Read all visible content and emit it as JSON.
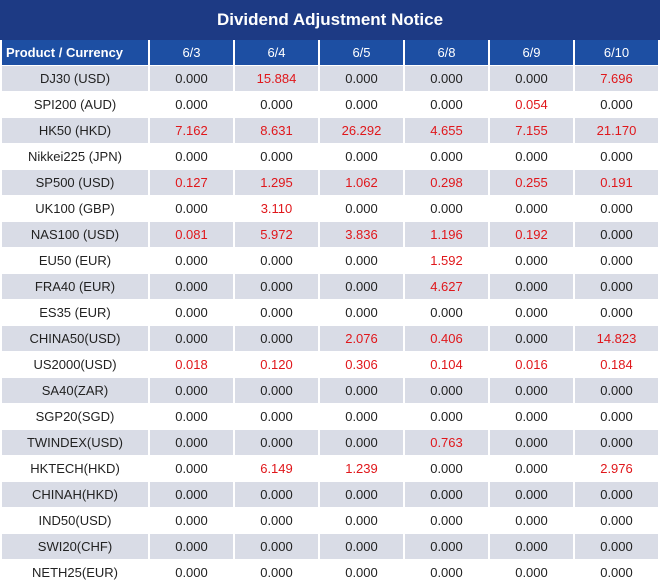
{
  "title": "Dividend Adjustment Notice",
  "header": {
    "product_label": "Product / Currency",
    "dates": [
      "6/3",
      "6/4",
      "6/5",
      "6/8",
      "6/9",
      "6/10"
    ]
  },
  "colors": {
    "title_bg": "#1d3a84",
    "header_bg": "#1d4fa3",
    "stripe": "#d9dce6",
    "highlight": "#e0171b"
  },
  "rows": [
    {
      "product": "DJ30 (USD)",
      "values": [
        "0.000",
        "15.884",
        "0.000",
        "0.000",
        "0.000",
        "7.696"
      ]
    },
    {
      "product": "SPI200 (AUD)",
      "values": [
        "0.000",
        "0.000",
        "0.000",
        "0.000",
        "0.054",
        "0.000"
      ]
    },
    {
      "product": "HK50 (HKD)",
      "values": [
        "7.162",
        "8.631",
        "26.292",
        "4.655",
        "7.155",
        "21.170"
      ]
    },
    {
      "product": "Nikkei225 (JPN)",
      "values": [
        "0.000",
        "0.000",
        "0.000",
        "0.000",
        "0.000",
        "0.000"
      ]
    },
    {
      "product": "SP500 (USD)",
      "values": [
        "0.127",
        "1.295",
        "1.062",
        "0.298",
        "0.255",
        "0.191"
      ]
    },
    {
      "product": "UK100 (GBP)",
      "values": [
        "0.000",
        "3.110",
        "0.000",
        "0.000",
        "0.000",
        "0.000"
      ]
    },
    {
      "product": "NAS100 (USD)",
      "values": [
        "0.081",
        "5.972",
        "3.836",
        "1.196",
        "0.192",
        "0.000"
      ]
    },
    {
      "product": "EU50 (EUR)",
      "values": [
        "0.000",
        "0.000",
        "0.000",
        "1.592",
        "0.000",
        "0.000"
      ]
    },
    {
      "product": "FRA40 (EUR)",
      "values": [
        "0.000",
        "0.000",
        "0.000",
        "4.627",
        "0.000",
        "0.000"
      ]
    },
    {
      "product": "ES35 (EUR)",
      "values": [
        "0.000",
        "0.000",
        "0.000",
        "0.000",
        "0.000",
        "0.000"
      ]
    },
    {
      "product": "CHINA50(USD)",
      "values": [
        "0.000",
        "0.000",
        "2.076",
        "0.406",
        "0.000",
        "14.823"
      ]
    },
    {
      "product": "US2000(USD)",
      "values": [
        "0.018",
        "0.120",
        "0.306",
        "0.104",
        "0.016",
        "0.184"
      ]
    },
    {
      "product": "SA40(ZAR)",
      "values": [
        "0.000",
        "0.000",
        "0.000",
        "0.000",
        "0.000",
        "0.000"
      ]
    },
    {
      "product": "SGP20(SGD)",
      "values": [
        "0.000",
        "0.000",
        "0.000",
        "0.000",
        "0.000",
        "0.000"
      ]
    },
    {
      "product": "TWINDEX(USD)",
      "values": [
        "0.000",
        "0.000",
        "0.000",
        "0.763",
        "0.000",
        "0.000"
      ]
    },
    {
      "product": "HKTECH(HKD)",
      "values": [
        "0.000",
        "6.149",
        "1.239",
        "0.000",
        "0.000",
        "2.976"
      ]
    },
    {
      "product": "CHINAH(HKD)",
      "values": [
        "0.000",
        "0.000",
        "0.000",
        "0.000",
        "0.000",
        "0.000"
      ]
    },
    {
      "product": "IND50(USD)",
      "values": [
        "0.000",
        "0.000",
        "0.000",
        "0.000",
        "0.000",
        "0.000"
      ]
    },
    {
      "product": "SWI20(CHF)",
      "values": [
        "0.000",
        "0.000",
        "0.000",
        "0.000",
        "0.000",
        "0.000"
      ]
    },
    {
      "product": "NETH25(EUR)",
      "values": [
        "0.000",
        "0.000",
        "0.000",
        "0.000",
        "0.000",
        "0.000"
      ]
    }
  ]
}
